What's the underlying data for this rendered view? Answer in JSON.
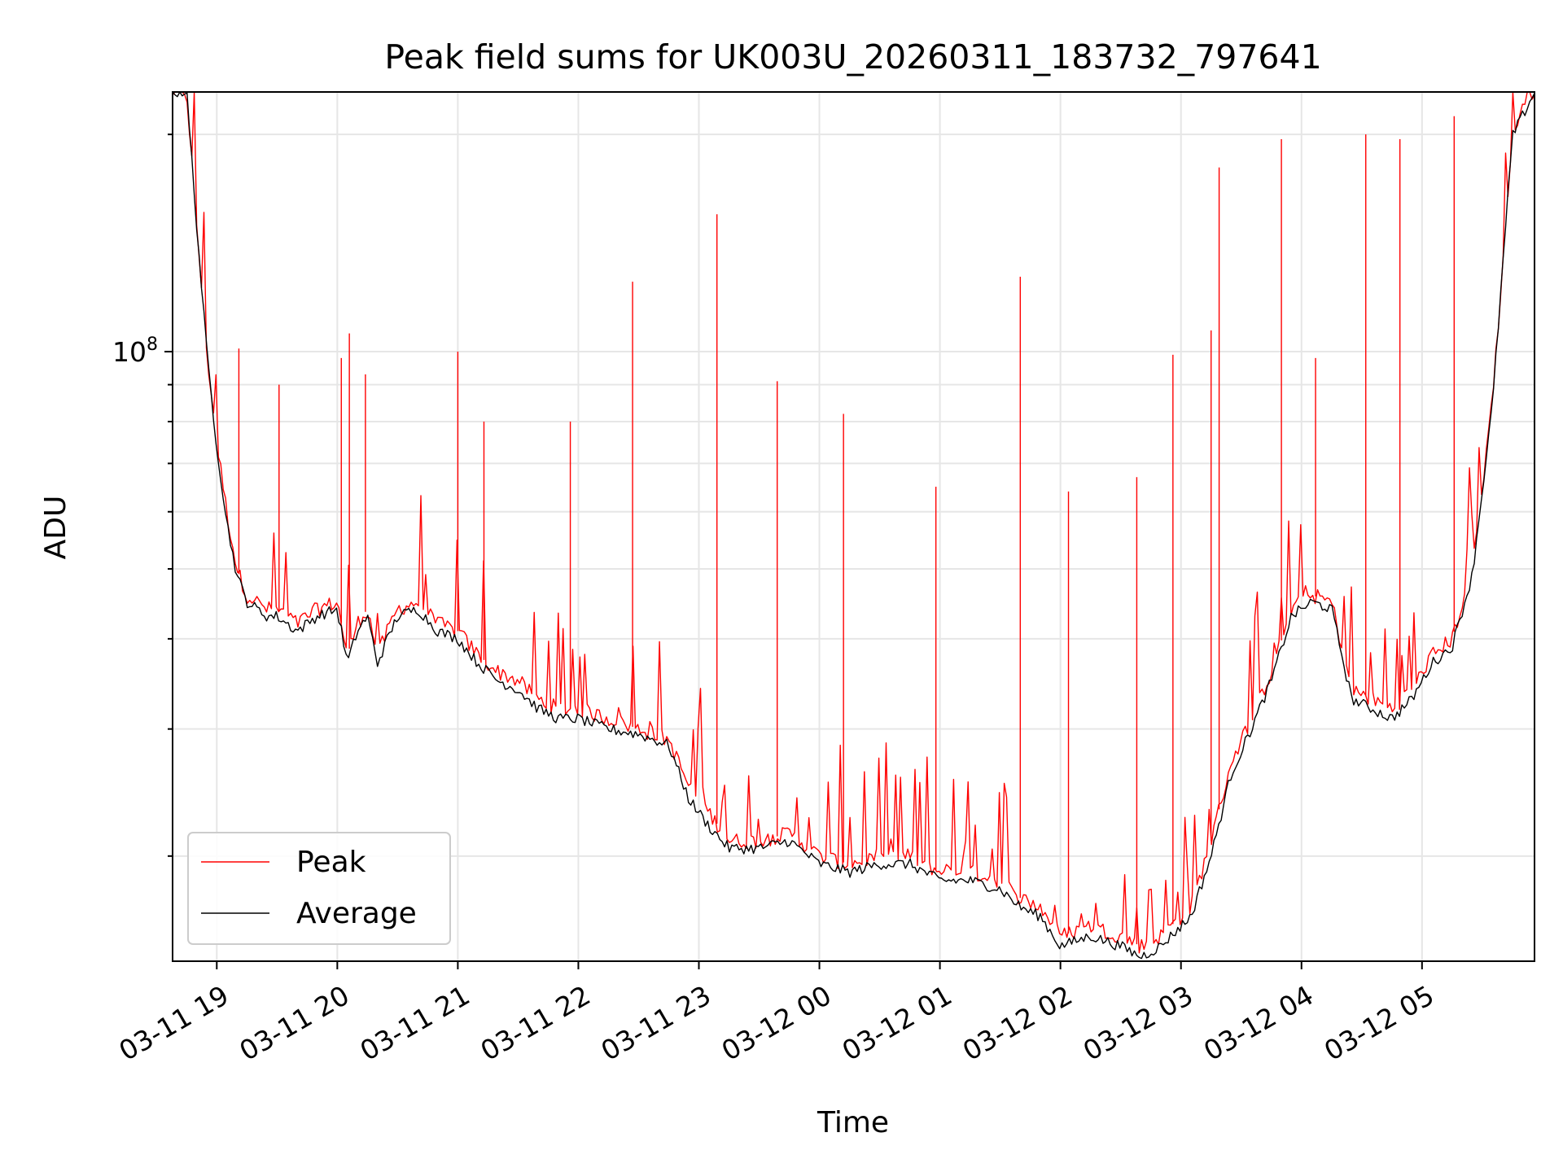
{
  "chart_data": {
    "type": "line",
    "title": "Peak field sums for UK003U_20260311_183732_797641",
    "xlabel": "Time",
    "ylabel": "ADU",
    "y_scale": "log",
    "grid": true,
    "legend_placement": "lower-left",
    "x_range": [
      "2026-03-11 18:38",
      "2026-03-12 05:56"
    ],
    "ylim": [
      14300000,
      229000000
    ],
    "x_ticks": [
      "03-11 19",
      "03-11 20",
      "03-11 21",
      "03-11 22",
      "03-11 23",
      "03-12 00",
      "03-12 01",
      "03-12 02",
      "03-12 03",
      "03-12 04",
      "03-12 05"
    ],
    "y_tick_labels": [
      {
        "base": "10",
        "exp": "8",
        "value": 100000000
      }
    ],
    "series": [
      {
        "name": "Peak",
        "color": "#ff0000",
        "x": [
          "2026-03-11 18:38",
          "2026-03-11 18:45",
          "2026-03-11 18:50",
          "2026-03-11 18:55",
          "2026-03-11 19:00",
          "2026-03-11 19:05",
          "2026-03-11 19:10",
          "2026-03-11 19:15",
          "2026-03-11 19:20",
          "2026-03-11 19:25",
          "2026-03-11 19:30",
          "2026-03-11 19:40",
          "2026-03-11 19:50",
          "2026-03-11 20:00",
          "2026-03-11 20:05",
          "2026-03-11 20:10",
          "2026-03-11 20:15",
          "2026-03-11 20:20",
          "2026-03-11 20:25",
          "2026-03-11 20:30",
          "2026-03-11 20:40",
          "2026-03-11 20:50",
          "2026-03-11 21:00",
          "2026-03-11 21:10",
          "2026-03-11 21:20",
          "2026-03-11 21:30",
          "2026-03-11 21:40",
          "2026-03-11 21:50",
          "2026-03-11 22:00",
          "2026-03-11 22:15",
          "2026-03-11 22:30",
          "2026-03-11 22:45",
          "2026-03-11 22:55",
          "2026-03-11 23:05",
          "2026-03-11 23:15",
          "2026-03-11 23:30",
          "2026-03-11 23:45",
          "2026-03-12 00:00",
          "2026-03-12 00:15",
          "2026-03-12 00:30",
          "2026-03-12 00:45",
          "2026-03-12 01:00",
          "2026-03-12 01:15",
          "2026-03-12 01:30",
          "2026-03-12 01:40",
          "2026-03-12 01:50",
          "2026-03-12 02:00",
          "2026-03-12 02:15",
          "2026-03-12 02:30",
          "2026-03-12 02:40",
          "2026-03-12 02:50",
          "2026-03-12 02:55",
          "2026-03-12 03:05",
          "2026-03-12 03:15",
          "2026-03-12 03:25",
          "2026-03-12 03:35",
          "2026-03-12 03:45",
          "2026-03-12 03:55",
          "2026-03-12 04:05",
          "2026-03-12 04:15",
          "2026-03-12 04:25",
          "2026-03-12 04:35",
          "2026-03-12 04:45",
          "2026-03-12 04:55",
          "2026-03-12 05:05",
          "2026-03-12 05:15",
          "2026-03-12 05:25",
          "2026-03-12 05:35",
          "2026-03-12 05:45",
          "2026-03-12 05:56"
        ],
        "y": [
          229000000,
          229000000,
          150000000,
          100000000,
          75000000,
          60000000,
          50000000,
          46000000,
          45000000,
          44000000,
          44000000,
          42000000,
          44000000,
          45000000,
          38000000,
          42000000,
          44000000,
          38000000,
          41000000,
          44000000,
          45000000,
          42000000,
          41000000,
          38000000,
          36000000,
          35000000,
          33000000,
          32000000,
          32000000,
          31000000,
          30000000,
          29000000,
          25000000,
          23000000,
          21000000,
          21000000,
          21500000,
          20000000,
          19500000,
          20000000,
          20000000,
          19000000,
          19000000,
          18500000,
          17500000,
          17000000,
          15500000,
          16000000,
          15500000,
          15000000,
          15500000,
          16000000,
          17000000,
          21000000,
          27000000,
          31000000,
          36000000,
          44000000,
          46000000,
          45000000,
          34000000,
          33000000,
          32000000,
          34000000,
          38000000,
          40000000,
          50000000,
          85000000,
          200000000,
          229000000
        ],
        "spikes": [
          {
            "x": "2026-03-11 19:11",
            "y": 101000000
          },
          {
            "x": "2026-03-11 19:31",
            "y": 90000000
          },
          {
            "x": "2026-03-11 20:06",
            "y": 106000000
          },
          {
            "x": "2026-03-11 20:02",
            "y": 98000000
          },
          {
            "x": "2026-03-11 20:14",
            "y": 93000000
          },
          {
            "x": "2026-03-11 21:00",
            "y": 100000000
          },
          {
            "x": "2026-03-11 21:13",
            "y": 80000000
          },
          {
            "x": "2026-03-11 21:56",
            "y": 80000000
          },
          {
            "x": "2026-03-11 22:27",
            "y": 125000000
          },
          {
            "x": "2026-03-11 23:09",
            "y": 155000000
          },
          {
            "x": "2026-03-11 23:39",
            "y": 91000000
          },
          {
            "x": "2026-03-12 00:12",
            "y": 82000000
          },
          {
            "x": "2026-03-12 00:58",
            "y": 65000000
          },
          {
            "x": "2026-03-12 01:40",
            "y": 127000000
          },
          {
            "x": "2026-03-12 02:04",
            "y": 64000000
          },
          {
            "x": "2026-03-12 02:38",
            "y": 67000000
          },
          {
            "x": "2026-03-12 02:56",
            "y": 99000000
          },
          {
            "x": "2026-03-12 03:15",
            "y": 107000000
          },
          {
            "x": "2026-03-12 03:19",
            "y": 180000000
          },
          {
            "x": "2026-03-12 03:50",
            "y": 197000000
          },
          {
            "x": "2026-03-12 04:07",
            "y": 98000000
          },
          {
            "x": "2026-03-12 04:32",
            "y": 200000000
          },
          {
            "x": "2026-03-12 04:49",
            "y": 197000000
          },
          {
            "x": "2026-03-12 05:16",
            "y": 212000000
          }
        ]
      },
      {
        "name": "Average",
        "color": "#000000",
        "x": [
          "2026-03-11 18:38",
          "2026-03-11 18:45",
          "2026-03-11 18:50",
          "2026-03-11 18:55",
          "2026-03-11 19:00",
          "2026-03-11 19:05",
          "2026-03-11 19:10",
          "2026-03-11 19:15",
          "2026-03-11 19:20",
          "2026-03-11 19:25",
          "2026-03-11 19:30",
          "2026-03-11 19:40",
          "2026-03-11 19:50",
          "2026-03-11 20:00",
          "2026-03-11 20:05",
          "2026-03-11 20:10",
          "2026-03-11 20:15",
          "2026-03-11 20:20",
          "2026-03-11 20:25",
          "2026-03-11 20:30",
          "2026-03-11 20:40",
          "2026-03-11 20:50",
          "2026-03-11 21:00",
          "2026-03-11 21:10",
          "2026-03-11 21:20",
          "2026-03-11 21:30",
          "2026-03-11 21:40",
          "2026-03-11 21:50",
          "2026-03-11 22:00",
          "2026-03-11 22:15",
          "2026-03-11 22:30",
          "2026-03-11 22:45",
          "2026-03-11 22:55",
          "2026-03-11 23:05",
          "2026-03-11 23:15",
          "2026-03-11 23:30",
          "2026-03-11 23:45",
          "2026-03-12 00:00",
          "2026-03-12 00:15",
          "2026-03-12 00:30",
          "2026-03-12 00:45",
          "2026-03-12 01:00",
          "2026-03-12 01:15",
          "2026-03-12 01:30",
          "2026-03-12 01:40",
          "2026-03-12 01:50",
          "2026-03-12 02:00",
          "2026-03-12 02:15",
          "2026-03-12 02:30",
          "2026-03-12 02:40",
          "2026-03-12 02:50",
          "2026-03-12 02:55",
          "2026-03-12 03:05",
          "2026-03-12 03:15",
          "2026-03-12 03:25",
          "2026-03-12 03:35",
          "2026-03-12 03:45",
          "2026-03-12 03:55",
          "2026-03-12 04:05",
          "2026-03-12 04:15",
          "2026-03-12 04:25",
          "2026-03-12 04:35",
          "2026-03-12 04:45",
          "2026-03-12 04:55",
          "2026-03-12 05:05",
          "2026-03-12 05:15",
          "2026-03-12 05:25",
          "2026-03-12 05:35",
          "2026-03-12 05:45",
          "2026-03-12 05:56"
        ],
        "y": [
          229000000,
          229000000,
          150000000,
          100000000,
          74000000,
          58000000,
          49000000,
          45000000,
          44000000,
          43000000,
          43000000,
          41000000,
          43000000,
          44000000,
          37000000,
          41000000,
          43000000,
          37000000,
          40000000,
          43000000,
          44000000,
          41000000,
          40000000,
          37000000,
          35000000,
          34000000,
          32000000,
          31000000,
          31000000,
          30000000,
          29500000,
          28500000,
          24000000,
          22000000,
          20500000,
          20500000,
          21000000,
          19500000,
          19000000,
          19500000,
          19500000,
          18500000,
          18500000,
          18000000,
          17000000,
          16500000,
          15000000,
          15500000,
          15000000,
          14500000,
          15000000,
          15500000,
          16500000,
          20000000,
          26000000,
          30000000,
          35000000,
          43000000,
          45000000,
          44000000,
          33000000,
          32000000,
          31000000,
          33000000,
          37000000,
          39000000,
          49000000,
          84000000,
          199000000,
          229000000
        ]
      }
    ]
  }
}
